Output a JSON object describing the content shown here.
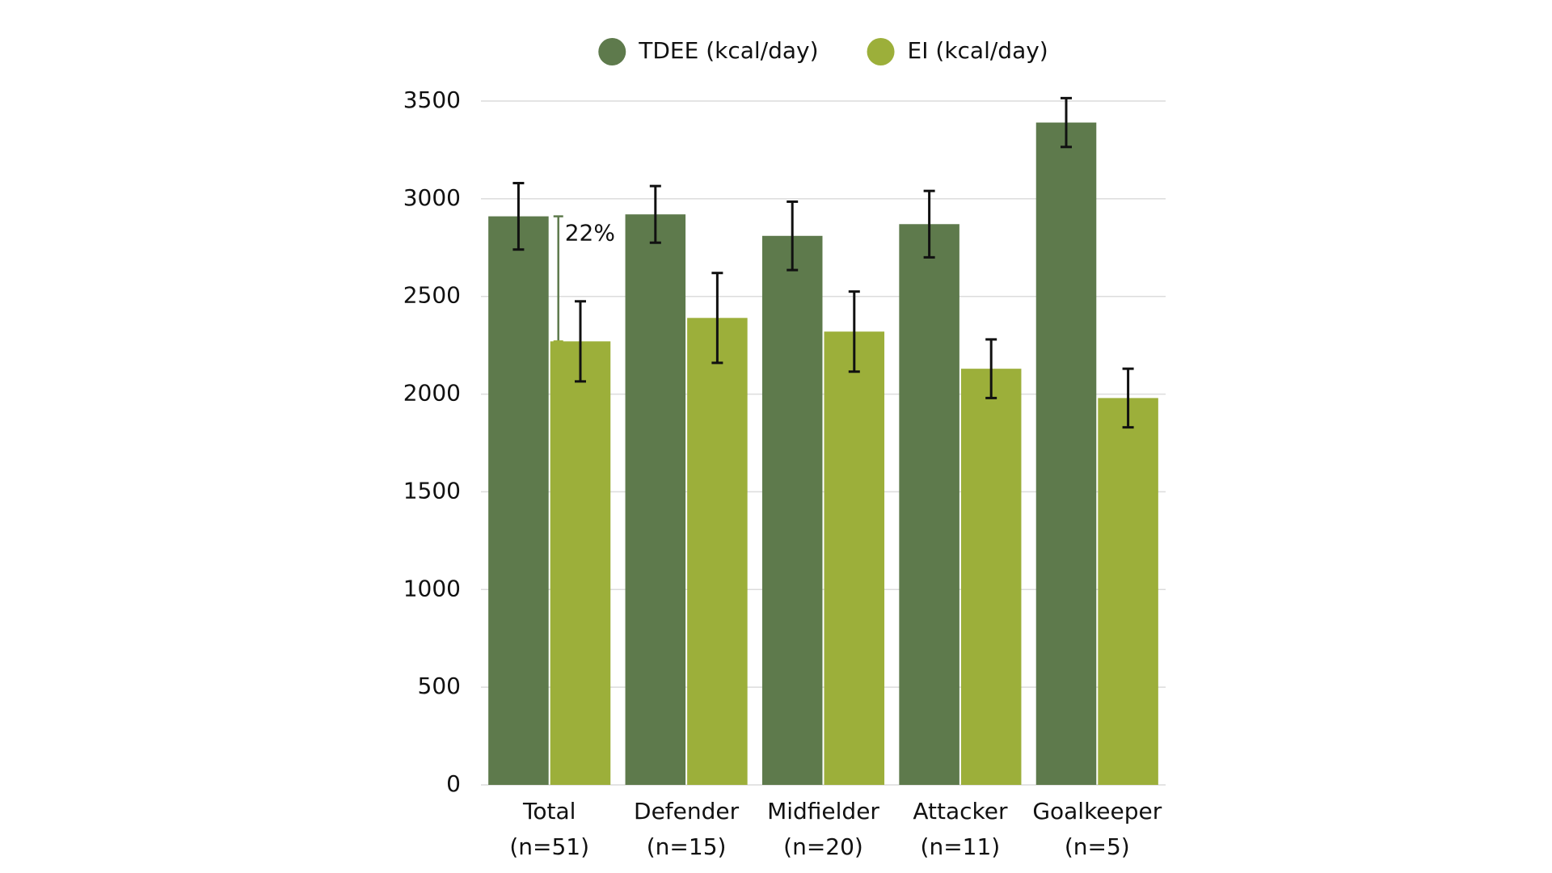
{
  "chart_data": {
    "type": "bar",
    "categories": [
      "Total\n(n=51)",
      "Defender\n(n=15)",
      "Midfielder\n(n=20)",
      "Attacker\n(n=11)",
      "Goalkeeper\n(n=5)"
    ],
    "series": [
      {
        "name": "TDEE (kcal/day)",
        "color": "#5e7a4c",
        "values": [
          2910,
          2920,
          2810,
          2870,
          3390
        ],
        "errors": [
          170,
          145,
          175,
          170,
          125
        ]
      },
      {
        "name": "EI (kcal/day)",
        "color": "#9caf3a",
        "values": [
          2270,
          2390,
          2320,
          2130,
          1980
        ],
        "errors": [
          205,
          230,
          205,
          150,
          150
        ]
      }
    ],
    "annotation": "22%",
    "ylim": [
      0,
      3500
    ],
    "yticks": [
      0,
      500,
      1000,
      1500,
      2000,
      2500,
      3000,
      3500
    ],
    "grid": true,
    "legend": "top"
  }
}
